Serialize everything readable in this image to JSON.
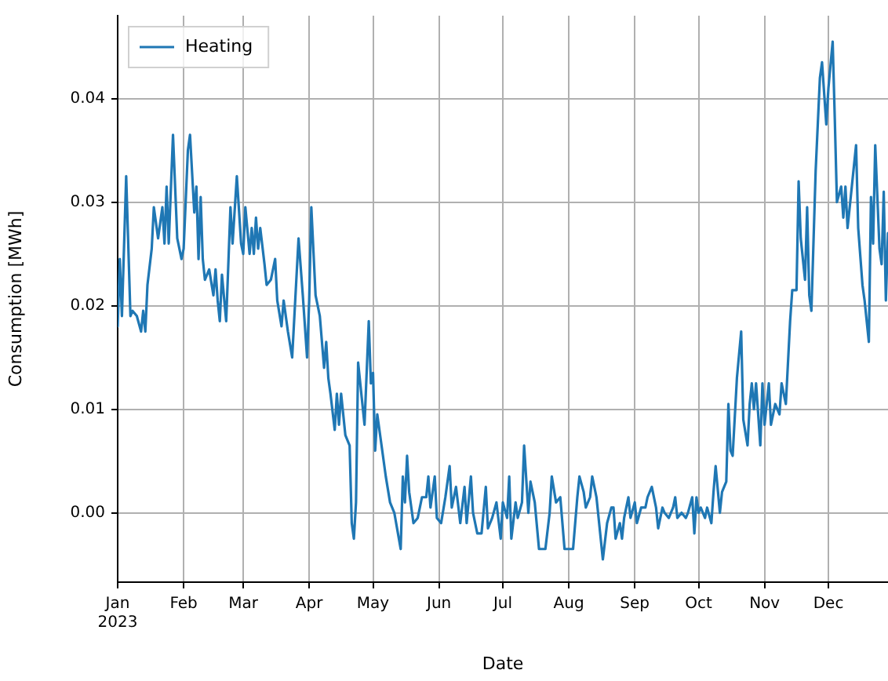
{
  "chart_data": {
    "type": "line",
    "xlabel": "Date",
    "ylabel": "Consumption [MWh]",
    "x": [
      "2023-01-01",
      "2023-01-02",
      "2023-01-03",
      "2023-01-05",
      "2023-01-07",
      "2023-01-08",
      "2023-01-10",
      "2023-01-12",
      "2023-01-13",
      "2023-01-14",
      "2023-01-15",
      "2023-01-17",
      "2023-01-18",
      "2023-01-20",
      "2023-01-22",
      "2023-01-23",
      "2023-01-24",
      "2023-01-25",
      "2023-01-27",
      "2023-01-29",
      "2023-01-31",
      "2023-02-01",
      "2023-02-03",
      "2023-02-04",
      "2023-02-06",
      "2023-02-07",
      "2023-02-08",
      "2023-02-09",
      "2023-02-10",
      "2023-02-11",
      "2023-02-13",
      "2023-02-15",
      "2023-02-16",
      "2023-02-17",
      "2023-02-18",
      "2023-02-19",
      "2023-02-21",
      "2023-02-23",
      "2023-02-24",
      "2023-02-26",
      "2023-02-28",
      "2023-03-01",
      "2023-03-02",
      "2023-03-04",
      "2023-03-05",
      "2023-03-06",
      "2023-03-07",
      "2023-03-08",
      "2023-03-09",
      "2023-03-11",
      "2023-03-12",
      "2023-03-14",
      "2023-03-16",
      "2023-03-17",
      "2023-03-19",
      "2023-03-20",
      "2023-03-22",
      "2023-03-24",
      "2023-03-27",
      "2023-03-29",
      "2023-03-31",
      "2023-04-01",
      "2023-04-02",
      "2023-04-04",
      "2023-04-06",
      "2023-04-08",
      "2023-04-09",
      "2023-04-10",
      "2023-04-11",
      "2023-04-13",
      "2023-04-14",
      "2023-04-15",
      "2023-04-16",
      "2023-04-18",
      "2023-04-20",
      "2023-04-21",
      "2023-04-22",
      "2023-04-23",
      "2023-04-24",
      "2023-04-27",
      "2023-04-29",
      "2023-04-30",
      "2023-05-01",
      "2023-05-02",
      "2023-05-03",
      "2023-05-05",
      "2023-05-07",
      "2023-05-09",
      "2023-05-11",
      "2023-05-14",
      "2023-05-15",
      "2023-05-16",
      "2023-05-17",
      "2023-05-18",
      "2023-05-20",
      "2023-05-22",
      "2023-05-24",
      "2023-05-26",
      "2023-05-27",
      "2023-05-28",
      "2023-05-30",
      "2023-05-31",
      "2023-06-02",
      "2023-06-04",
      "2023-06-06",
      "2023-06-07",
      "2023-06-09",
      "2023-06-11",
      "2023-06-13",
      "2023-06-14",
      "2023-06-16",
      "2023-06-17",
      "2023-06-19",
      "2023-06-21",
      "2023-06-23",
      "2023-06-24",
      "2023-06-26",
      "2023-06-28",
      "2023-06-30",
      "2023-07-01",
      "2023-07-03",
      "2023-07-04",
      "2023-07-05",
      "2023-07-07",
      "2023-07-08",
      "2023-07-10",
      "2023-07-11",
      "2023-07-13",
      "2023-07-14",
      "2023-07-16",
      "2023-07-18",
      "2023-07-21",
      "2023-07-23",
      "2023-07-24",
      "2023-07-26",
      "2023-07-28",
      "2023-07-30",
      "2023-08-03",
      "2023-08-05",
      "2023-08-06",
      "2023-08-08",
      "2023-08-09",
      "2023-08-11",
      "2023-08-12",
      "2023-08-14",
      "2023-08-16",
      "2023-08-17",
      "2023-08-19",
      "2023-08-21",
      "2023-08-22",
      "2023-08-23",
      "2023-08-25",
      "2023-08-26",
      "2023-08-27",
      "2023-08-29",
      "2023-08-30",
      "2023-09-01",
      "2023-09-02",
      "2023-09-04",
      "2023-09-06",
      "2023-09-07",
      "2023-09-09",
      "2023-09-11",
      "2023-09-12",
      "2023-09-14",
      "2023-09-15",
      "2023-09-17",
      "2023-09-19",
      "2023-09-20",
      "2023-09-21",
      "2023-09-23",
      "2023-09-25",
      "2023-09-26",
      "2023-09-28",
      "2023-09-29",
      "2023-09-30",
      "2023-10-01",
      "2023-10-02",
      "2023-10-04",
      "2023-10-05",
      "2023-10-07",
      "2023-10-08",
      "2023-10-09",
      "2023-10-11",
      "2023-10-12",
      "2023-10-14",
      "2023-10-15",
      "2023-10-16",
      "2023-10-17",
      "2023-10-19",
      "2023-10-21",
      "2023-10-22",
      "2023-10-24",
      "2023-10-25",
      "2023-10-26",
      "2023-10-27",
      "2023-10-28",
      "2023-10-30",
      "2023-10-31",
      "2023-11-01",
      "2023-11-03",
      "2023-11-04",
      "2023-11-06",
      "2023-11-08",
      "2023-11-09",
      "2023-11-11",
      "2023-11-13",
      "2023-11-14",
      "2023-11-16",
      "2023-11-17",
      "2023-11-18",
      "2023-11-20",
      "2023-11-21",
      "2023-11-22",
      "2023-11-23",
      "2023-11-25",
      "2023-11-27",
      "2023-11-28",
      "2023-11-30",
      "2023-12-01",
      "2023-12-03",
      "2023-12-04",
      "2023-12-05",
      "2023-12-07",
      "2023-12-08",
      "2023-12-09",
      "2023-12-10",
      "2023-12-12",
      "2023-12-14",
      "2023-12-15",
      "2023-12-17",
      "2023-12-18",
      "2023-12-20",
      "2023-12-21",
      "2023-12-22",
      "2023-12-23",
      "2023-12-25",
      "2023-12-26",
      "2023-12-27",
      "2023-12-28",
      "2023-12-29"
    ],
    "series": [
      {
        "name": "Heating",
        "color": "#1f77b4",
        "values": [
          0.018,
          0.0245,
          0.019,
          0.0325,
          0.019,
          0.0195,
          0.019,
          0.0175,
          0.0195,
          0.0175,
          0.022,
          0.0255,
          0.0295,
          0.0265,
          0.0295,
          0.026,
          0.0315,
          0.026,
          0.0365,
          0.0265,
          0.0245,
          0.0255,
          0.035,
          0.0365,
          0.029,
          0.0315,
          0.0245,
          0.0305,
          0.0245,
          0.0225,
          0.0235,
          0.021,
          0.0235,
          0.0205,
          0.0185,
          0.023,
          0.0185,
          0.0295,
          0.026,
          0.0325,
          0.026,
          0.025,
          0.0295,
          0.025,
          0.0275,
          0.025,
          0.0285,
          0.0255,
          0.0275,
          0.024,
          0.022,
          0.0225,
          0.0245,
          0.0205,
          0.018,
          0.0205,
          0.0175,
          0.015,
          0.0265,
          0.021,
          0.015,
          0.0205,
          0.0295,
          0.021,
          0.019,
          0.014,
          0.0165,
          0.013,
          0.0115,
          0.008,
          0.0115,
          0.0085,
          0.0115,
          0.0075,
          0.0065,
          -0.001,
          -0.0025,
          0.001,
          0.0145,
          0.0085,
          0.0185,
          0.0125,
          0.0135,
          0.006,
          0.0095,
          0.0065,
          0.0035,
          0.001,
          0.0,
          -0.0035,
          0.0035,
          0.001,
          0.0055,
          0.002,
          -0.001,
          -0.0005,
          0.0015,
          0.0015,
          0.0035,
          0.0005,
          0.0035,
          -0.0005,
          -0.001,
          0.0015,
          0.0045,
          0.0005,
          0.0025,
          -0.001,
          0.0025,
          -0.001,
          0.0035,
          0.0,
          -0.002,
          -0.002,
          0.0025,
          -0.0015,
          -0.0005,
          0.001,
          -0.0025,
          0.001,
          -0.0005,
          0.0035,
          -0.0025,
          0.001,
          -0.0005,
          0.001,
          0.0065,
          0.0,
          0.003,
          0.001,
          -0.0035,
          -0.0035,
          0.0,
          0.0035,
          0.001,
          0.0015,
          -0.0035,
          -0.0035,
          0.0015,
          0.0035,
          0.002,
          0.0005,
          0.0015,
          0.0035,
          0.0015,
          -0.0025,
          -0.0045,
          -0.001,
          0.0005,
          0.0005,
          -0.0025,
          -0.001,
          -0.0025,
          -0.0005,
          0.0015,
          -0.0005,
          0.001,
          -0.001,
          0.0005,
          0.0005,
          0.0015,
          0.0025,
          0.0005,
          -0.0015,
          0.0005,
          0.0,
          -0.0005,
          0.0005,
          0.0015,
          -0.0005,
          0.0,
          -0.0005,
          0.0,
          0.0015,
          -0.002,
          0.0015,
          0.0,
          0.0005,
          -0.0005,
          0.0005,
          -0.001,
          0.002,
          0.0045,
          0.0,
          0.002,
          0.003,
          0.0105,
          0.006,
          0.0055,
          0.013,
          0.0175,
          0.009,
          0.0065,
          0.0105,
          0.0125,
          0.01,
          0.0125,
          0.0065,
          0.0125,
          0.0085,
          0.0125,
          0.0085,
          0.0105,
          0.0095,
          0.0125,
          0.0105,
          0.0185,
          0.0215,
          0.0215,
          0.032,
          0.0265,
          0.0225,
          0.0295,
          0.021,
          0.0195,
          0.033,
          0.042,
          0.0435,
          0.0375,
          0.041,
          0.0455,
          0.038,
          0.03,
          0.0315,
          0.0285,
          0.0315,
          0.0275,
          0.0315,
          0.0355,
          0.0275,
          0.022,
          0.0205,
          0.0165,
          0.0305,
          0.026,
          0.0355,
          0.0255,
          0.024,
          0.031,
          0.0205,
          0.027
        ]
      }
    ],
    "xlim": [
      "2023-01-01",
      "2023-12-29"
    ],
    "xticks": [
      {
        "value": "2023-01-01",
        "label": "Jan\n2023"
      },
      {
        "value": "2023-02-01",
        "label": "Feb"
      },
      {
        "value": "2023-03-01",
        "label": "Mar"
      },
      {
        "value": "2023-04-01",
        "label": "Apr"
      },
      {
        "value": "2023-05-01",
        "label": "May"
      },
      {
        "value": "2023-06-01",
        "label": "Jun"
      },
      {
        "value": "2023-07-01",
        "label": "Jul"
      },
      {
        "value": "2023-08-01",
        "label": "Aug"
      },
      {
        "value": "2023-09-01",
        "label": "Sep"
      },
      {
        "value": "2023-10-01",
        "label": "Oct"
      },
      {
        "value": "2023-11-01",
        "label": "Nov"
      },
      {
        "value": "2023-12-01",
        "label": "Dec"
      }
    ],
    "ylim": [
      -0.0067,
      0.048
    ],
    "yticks": [
      {
        "value": 0,
        "label": "0.00"
      },
      0.01,
      0.02,
      0.03,
      0.04
    ],
    "grid": true,
    "legend": "top left",
    "marker": "none",
    "line_style": "solid"
  }
}
